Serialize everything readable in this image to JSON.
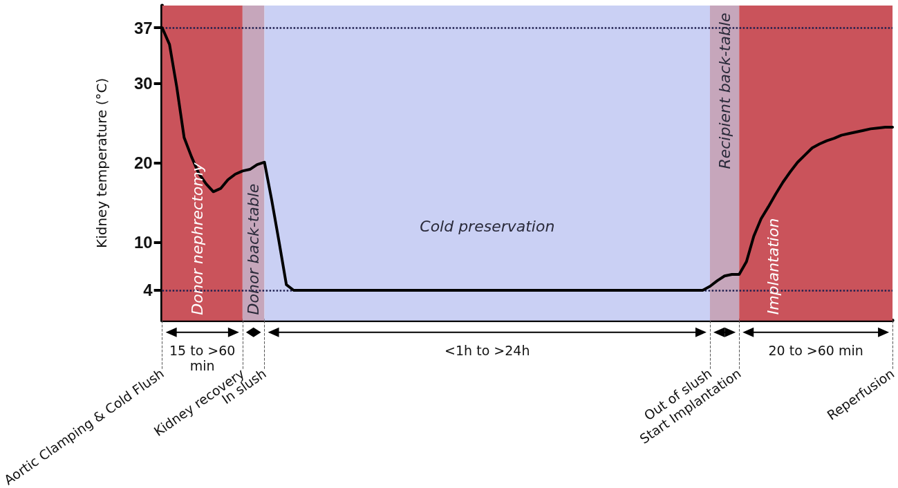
{
  "chart_data": {
    "type": "line",
    "ylabel": "Kidney temperature (°C)",
    "categories": [
      "Aortic Clamping & Cold Flush",
      null,
      null,
      null,
      null,
      null,
      null,
      null,
      null,
      null,
      null,
      "Kidney recovery",
      null,
      null,
      "In slush",
      null,
      null,
      null,
      null,
      null,
      null,
      null,
      null,
      null,
      null,
      null,
      null,
      null,
      null,
      null,
      null,
      null,
      null,
      null,
      null,
      null,
      null,
      null,
      null,
      null,
      null,
      null,
      null,
      null,
      null,
      null,
      null,
      null,
      null,
      null,
      null,
      null,
      null,
      null,
      null,
      null,
      null,
      null,
      null,
      null,
      null,
      null,
      null,
      null,
      null,
      null,
      null,
      null,
      null,
      null,
      null,
      null,
      null,
      null,
      null,
      "Out of slush",
      null,
      null,
      null,
      "Start Implantation",
      null,
      null,
      null,
      null,
      null,
      null,
      null,
      null,
      null,
      null,
      null,
      null,
      null,
      null,
      null,
      null,
      null,
      null,
      null,
      null,
      "Reperfusion"
    ],
    "series": [
      {
        "color": "#000000",
        "values": [
          37,
          34.9,
          29.5,
          23.2,
          20.8,
          18.7,
          17.4,
          16.4,
          16.8,
          17.9,
          18.6,
          19.0,
          19.2,
          19.8,
          20.1,
          15.3,
          10.1,
          4.7,
          4,
          4,
          4,
          4,
          4,
          4,
          4,
          4,
          4,
          4,
          4,
          4,
          4,
          4,
          4,
          4,
          4,
          4,
          4,
          4,
          4,
          4,
          4,
          4,
          4,
          4,
          4,
          4,
          4,
          4,
          4,
          4,
          4,
          4,
          4,
          4,
          4,
          4,
          4,
          4,
          4,
          4,
          4,
          4,
          4,
          4,
          4,
          4,
          4,
          4,
          4,
          4,
          4,
          4,
          4,
          4,
          4,
          4.5,
          5.2,
          5.8,
          6,
          6,
          7.6,
          10.8,
          13,
          14.5,
          16.1,
          17.6,
          18.9,
          20.1,
          21,
          21.9,
          22.4,
          22.8,
          23.1,
          23.5,
          23.7,
          23.9,
          24.1,
          24.3,
          24.4,
          24.5,
          24.5
        ]
      }
    ],
    "ylim": [
      0.2,
      39.8
    ],
    "yticks": [
      4,
      10,
      20,
      30,
      37
    ],
    "ref_lines": [
      {
        "axis": "y",
        "value": 37,
        "color": "#1f1f4f",
        "line_style": "dotted"
      },
      {
        "axis": "y",
        "value": 4,
        "color": "#1f1f4f",
        "line_style": "dotted"
      }
    ],
    "bands": [
      {
        "axis": "x",
        "from": "Aortic Clamping & Cold Flush",
        "to": "Kidney recovery",
        "label": "Donor nephrectomy",
        "color": "#ca535b"
      },
      {
        "axis": "x",
        "from": "Kidney recovery",
        "to": "In slush",
        "label": "Donor back-table",
        "color": "#c6a6bb"
      },
      {
        "axis": "x",
        "from": "In slush",
        "to": "Out of slush",
        "label": "Cold preservation",
        "color": "#cad0f4"
      },
      {
        "axis": "x",
        "from": "Out of slush",
        "to": "Start Implantation",
        "label": "Recipient back-table",
        "color": "#c6a6bb"
      },
      {
        "axis": "x",
        "from": "Start Implantation",
        "to": "Reperfusion",
        "label": "Implantation",
        "color": "#ca535b"
      }
    ],
    "annotations": [
      "15 to >60 min",
      "<1h to >24h",
      "20 to >60 min"
    ],
    "marker": "none",
    "line_style": "solid"
  }
}
